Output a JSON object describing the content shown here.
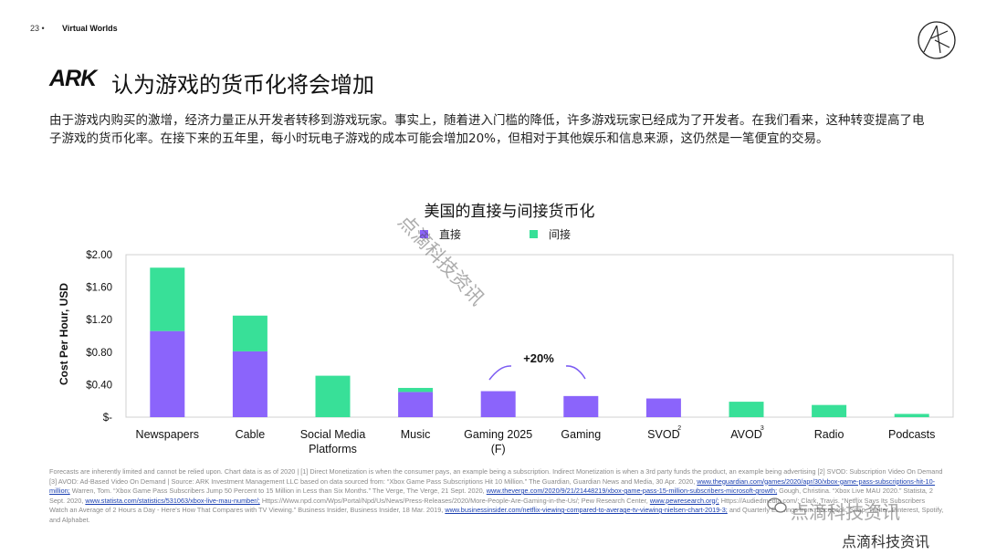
{
  "header": {
    "page_number": "23",
    "section_title": "Virtual Worlds"
  },
  "slide": {
    "brand": "ARK",
    "title": "认为游戏的货币化将会增加",
    "paragraph": "由于游戏内购买的激增，经济力量正从开发者转移到游戏玩家。事实上，随着进入门槛的降低，许多游戏玩家已经成为了开发者。在我们看来，这种转变提高了电子游戏的货币化率。在接下来的五年里，每小时玩电子游戏的成本可能会增加20%，但相对于其他娱乐和信息来源，这仍然是一笔便宜的交易。"
  },
  "chart_data": {
    "type": "bar",
    "stacked": true,
    "title": "美国的直接与间接货币化",
    "ylabel": "Cost Per Hour, USD",
    "ylim": [
      0,
      2.0
    ],
    "yticks": [
      "$-",
      "$0.40",
      "$0.80",
      "$1.20",
      "$1.60",
      "$2.00"
    ],
    "ytick_values": [
      0,
      0.4,
      0.8,
      1.2,
      1.6,
      2.0
    ],
    "legend_position": "top-center",
    "categories": [
      "Newspapers",
      "Cable",
      "Social Media Platforms",
      "Music",
      "Gaming 2025 (F)",
      "Gaming",
      "SVOD",
      "AVOD",
      "Radio",
      "Podcasts"
    ],
    "category_superscripts": [
      "",
      "",
      "",
      "",
      "",
      "",
      "2",
      "3",
      "",
      ""
    ],
    "series": [
      {
        "name": "直接",
        "color": "#8b64fb",
        "values": [
          1.06,
          0.81,
          0.0,
          0.31,
          0.32,
          0.26,
          0.23,
          0.0,
          0.0,
          0.0
        ]
      },
      {
        "name": "间接",
        "color": "#38e098",
        "values": [
          0.78,
          0.44,
          0.51,
          0.05,
          0.0,
          0.0,
          0.0,
          0.19,
          0.15,
          0.04
        ]
      }
    ],
    "annotation": "+20%",
    "grid": false
  },
  "footnote": {
    "p1": "Forecasts are inherently limited and cannot be relied upon. Chart data is as of 2020 | [1] Direct Monetization is when the consumer pays, an example being a subscription. Indirect Monetization is when a 3rd party funds the product, an example being advertising [2] SVOD: Subscription Video On Demand [3] AVOD: Ad-Based Video On Demand | Source: ARK Investment Management LLC based on data sourced from: “Xbox Game Pass Subscriptions Hit 10 Million.” The Guardian, Guardian News and Media, 30 Apr. 2020,",
    "link1": "www.theguardian.com/games/2020/apr/30/xbox-game-pass-subscriptions-hit-10-million;",
    "p2": "Warren, Tom. “Xbox Game Pass Subscribers Jump 50 Percent to 15 Million in Less than Six Months.” The Verge, The Verge, 21 Sept. 2020,",
    "link2": "www.theverge.com/2020/9/21/21448219/xbox-game-pass-15-million-subscribers-microsoft-growth;",
    "p3": "Gough, Christina. “Xbox Live MAU 2020.” Statista, 2 Sept. 2020,",
    "link3": "www.statista.com/statistics/531063/xbox-live-mau-number/;",
    "p4": "Https://Www.npd.com/Wps/Portal/Npd/Us/News/Press-Releases/2020/More-People-Are-Gaming-in-the-Us/; Pew Research Center,",
    "link4": "www.pewresearch.org/;",
    "p5": "Https://Audiedmedia.com/; Clark, Travis. “Netflix Says Its Subscribers Watch an Average of 2 Hours a Day - Here's How That Compares with TV Viewing.” Business Insider, Business Insider, 18 Mar. 2019,",
    "link5": "www.businessinsider.com/netflix-viewing-compared-to-average-tv-viewing-nielsen-chart-2019-3;",
    "p6": "and Quarterly Earnings from: Facebook, Snap, Twitter, Pinterest, Spotify, and Alphabet."
  },
  "watermarks": {
    "diagonal": "点滴科技资讯",
    "wechat": "点滴科技资讯",
    "bottom": "点滴科技资讯"
  }
}
